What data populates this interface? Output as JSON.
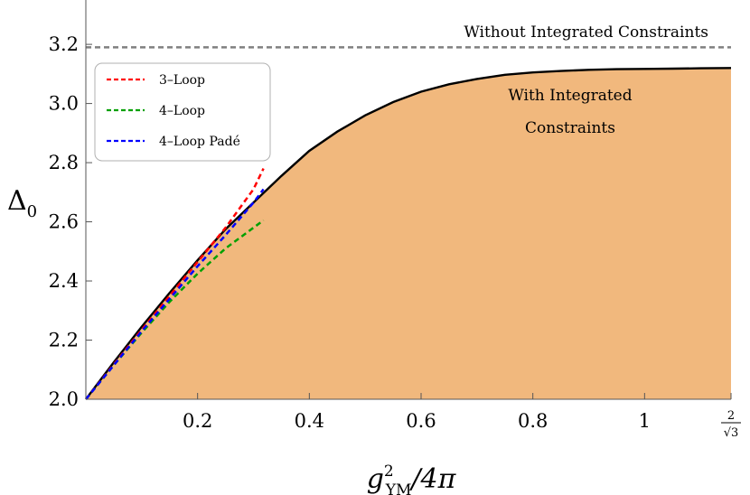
{
  "chart_data": {
    "type": "area",
    "xlabel": {
      "base": "g",
      "sup": "2",
      "sub": "YM",
      "rest": "/4π"
    },
    "ylabel": {
      "base": "Δ",
      "sub": "0"
    },
    "xlim": [
      0,
      1.1547
    ],
    "ylim": [
      2.0,
      3.35
    ],
    "x_ticks": [
      {
        "value": 0.2,
        "label": "0.2"
      },
      {
        "value": 0.4,
        "label": "0.4"
      },
      {
        "value": 0.6,
        "label": "0.6"
      },
      {
        "value": 0.8,
        "label": "0.8"
      },
      {
        "value": 1.0,
        "label": "1"
      }
    ],
    "x_special_tick": {
      "value": 1.1547,
      "numerator": "2",
      "denominator": "√3"
    },
    "y_ticks": [
      {
        "value": 2.0,
        "label": "2.0"
      },
      {
        "value": 2.2,
        "label": "2.2"
      },
      {
        "value": 2.4,
        "label": "2.4"
      },
      {
        "value": 2.6,
        "label": "2.6"
      },
      {
        "value": 2.8,
        "label": "2.8"
      },
      {
        "value": 3.0,
        "label": "3.0"
      },
      {
        "value": 3.2,
        "label": "3.2"
      }
    ],
    "bound": {
      "name": "With Integrated Constraints",
      "color": "#000000",
      "fill": "#f1b87d",
      "x": [
        0,
        0.05,
        0.1,
        0.15,
        0.2,
        0.25,
        0.3,
        0.35,
        0.4,
        0.45,
        0.5,
        0.55,
        0.6,
        0.65,
        0.7,
        0.75,
        0.8,
        0.85,
        0.9,
        0.95,
        1.0,
        1.05,
        1.1,
        1.1547
      ],
      "y": [
        2.0,
        2.125,
        2.245,
        2.36,
        2.47,
        2.575,
        2.665,
        2.755,
        2.84,
        2.905,
        2.96,
        3.005,
        3.04,
        3.065,
        3.083,
        3.097,
        3.105,
        3.11,
        3.114,
        3.116,
        3.117,
        3.118,
        3.119,
        3.12
      ]
    },
    "reference_line": {
      "name": "Without Integrated Constraints",
      "y": 3.19,
      "color": "#808080"
    },
    "series": [
      {
        "name": "3–Loop",
        "color": "#ff0000",
        "x": [
          0,
          0.05,
          0.1,
          0.15,
          0.2,
          0.25,
          0.3,
          0.318
        ],
        "y": [
          2.0,
          2.118,
          2.235,
          2.35,
          2.465,
          2.58,
          2.71,
          2.78
        ]
      },
      {
        "name": "4–Loop",
        "color": "#00a000",
        "x": [
          0,
          0.05,
          0.1,
          0.15,
          0.2,
          0.25,
          0.3,
          0.318
        ],
        "y": [
          2.0,
          2.115,
          2.225,
          2.33,
          2.425,
          2.51,
          2.58,
          2.605
        ]
      },
      {
        "name": "4–Loop Padé",
        "color": "#0000ff",
        "x": [
          0,
          0.05,
          0.1,
          0.15,
          0.2,
          0.25,
          0.3,
          0.318
        ],
        "y": [
          2.0,
          2.115,
          2.23,
          2.34,
          2.45,
          2.555,
          2.665,
          2.71
        ]
      }
    ],
    "annotations": {
      "with": [
        "With Integrated",
        "Constraints"
      ],
      "without": "Without Integrated Constraints"
    },
    "legend": {
      "placement": "top-left"
    },
    "grid": false
  }
}
